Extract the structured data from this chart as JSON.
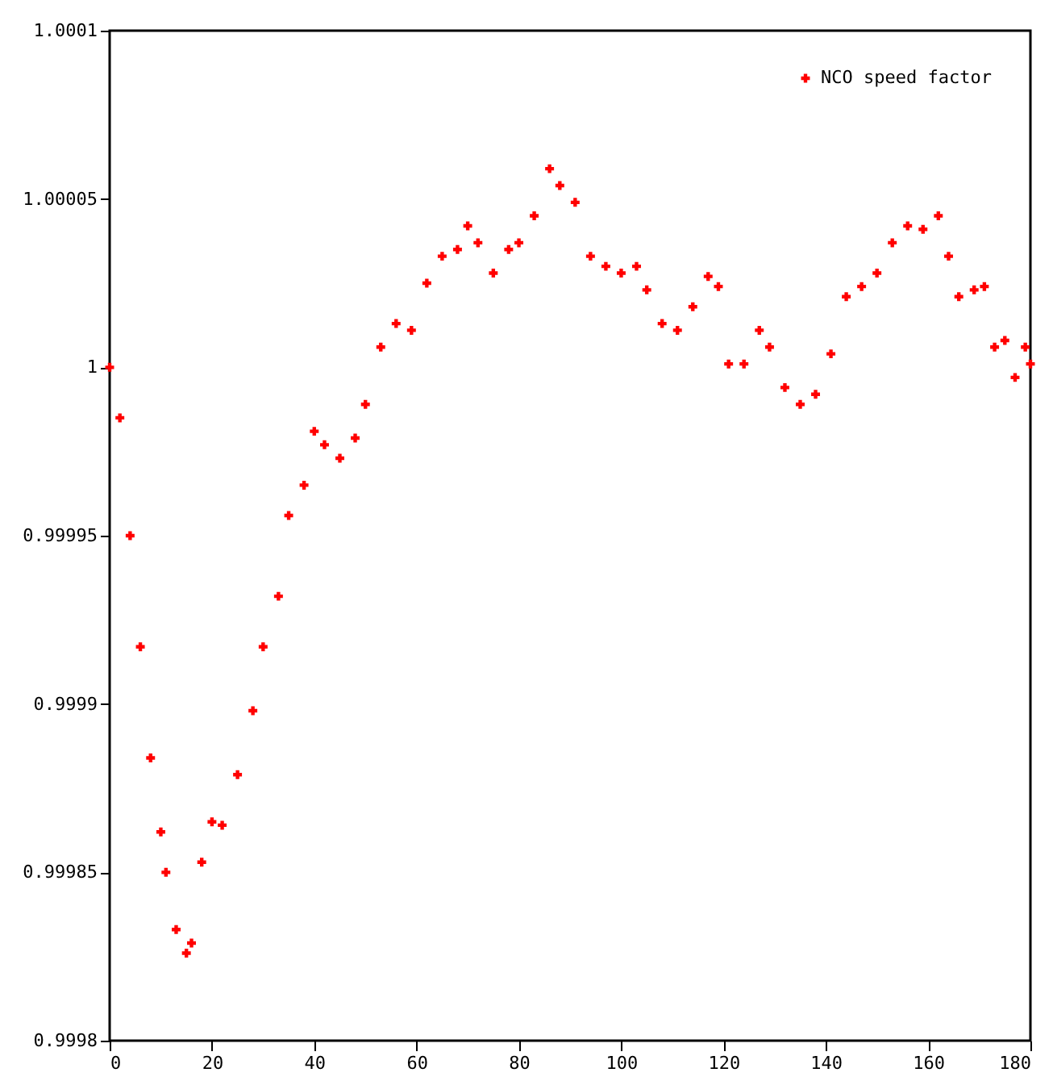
{
  "chart_data": {
    "type": "scatter",
    "legend": "top right",
    "marker": "cross",
    "grid": false,
    "xlim": [
      0,
      180
    ],
    "xticks": [
      0,
      20,
      40,
      60,
      80,
      100,
      120,
      140,
      160,
      180
    ],
    "ylim": [
      0.9998,
      1.0001
    ],
    "yticks": [
      0.9998,
      0.99985,
      0.9999,
      0.99995,
      1,
      1.00005,
      1.0001
    ],
    "x": [
      0,
      2,
      4,
      6,
      8,
      10,
      11,
      13,
      15,
      16,
      18,
      20,
      22,
      25,
      28,
      30,
      33,
      35,
      38,
      40,
      42,
      45,
      48,
      50,
      53,
      56,
      59,
      62,
      65,
      68,
      70,
      72,
      75,
      78,
      80,
      83,
      86,
      88,
      91,
      94,
      97,
      100,
      103,
      105,
      108,
      111,
      114,
      117,
      119,
      121,
      124,
      127,
      129,
      132,
      135,
      138,
      141,
      144,
      147,
      150,
      153,
      156,
      159,
      162,
      164,
      166,
      169,
      171,
      173,
      175,
      177,
      179,
      180
    ],
    "series": [
      {
        "name": "NCO speed factor",
        "color": "#ff0000",
        "values": [
          1.0,
          0.999985,
          0.99995,
          0.999917,
          0.999884,
          0.999862,
          0.99985,
          0.999833,
          0.999826,
          0.999829,
          0.999853,
          0.999865,
          0.999864,
          0.999879,
          0.999898,
          0.999917,
          0.999932,
          0.999956,
          0.999965,
          0.999981,
          0.999977,
          0.999973,
          0.999979,
          0.999989,
          1.000006,
          1.000013,
          1.000011,
          1.000025,
          1.000033,
          1.000035,
          1.000042,
          1.000037,
          1.000028,
          1.000035,
          1.000037,
          1.000045,
          1.000059,
          1.000054,
          1.000049,
          1.000033,
          1.00003,
          1.000028,
          1.00003,
          1.000023,
          1.000013,
          1.000011,
          1.000018,
          1.000027,
          1.000024,
          1.000001,
          1.000001,
          1.000011,
          1.000006,
          0.999994,
          0.999989,
          0.999992,
          1.000004,
          1.000021,
          1.000024,
          1.000028,
          1.000037,
          1.000042,
          1.000041,
          1.000045,
          1.000033,
          1.000021,
          1.000023,
          1.000024,
          1.000006,
          1.000008,
          0.999997,
          1.000006,
          1.000001
        ]
      }
    ]
  }
}
